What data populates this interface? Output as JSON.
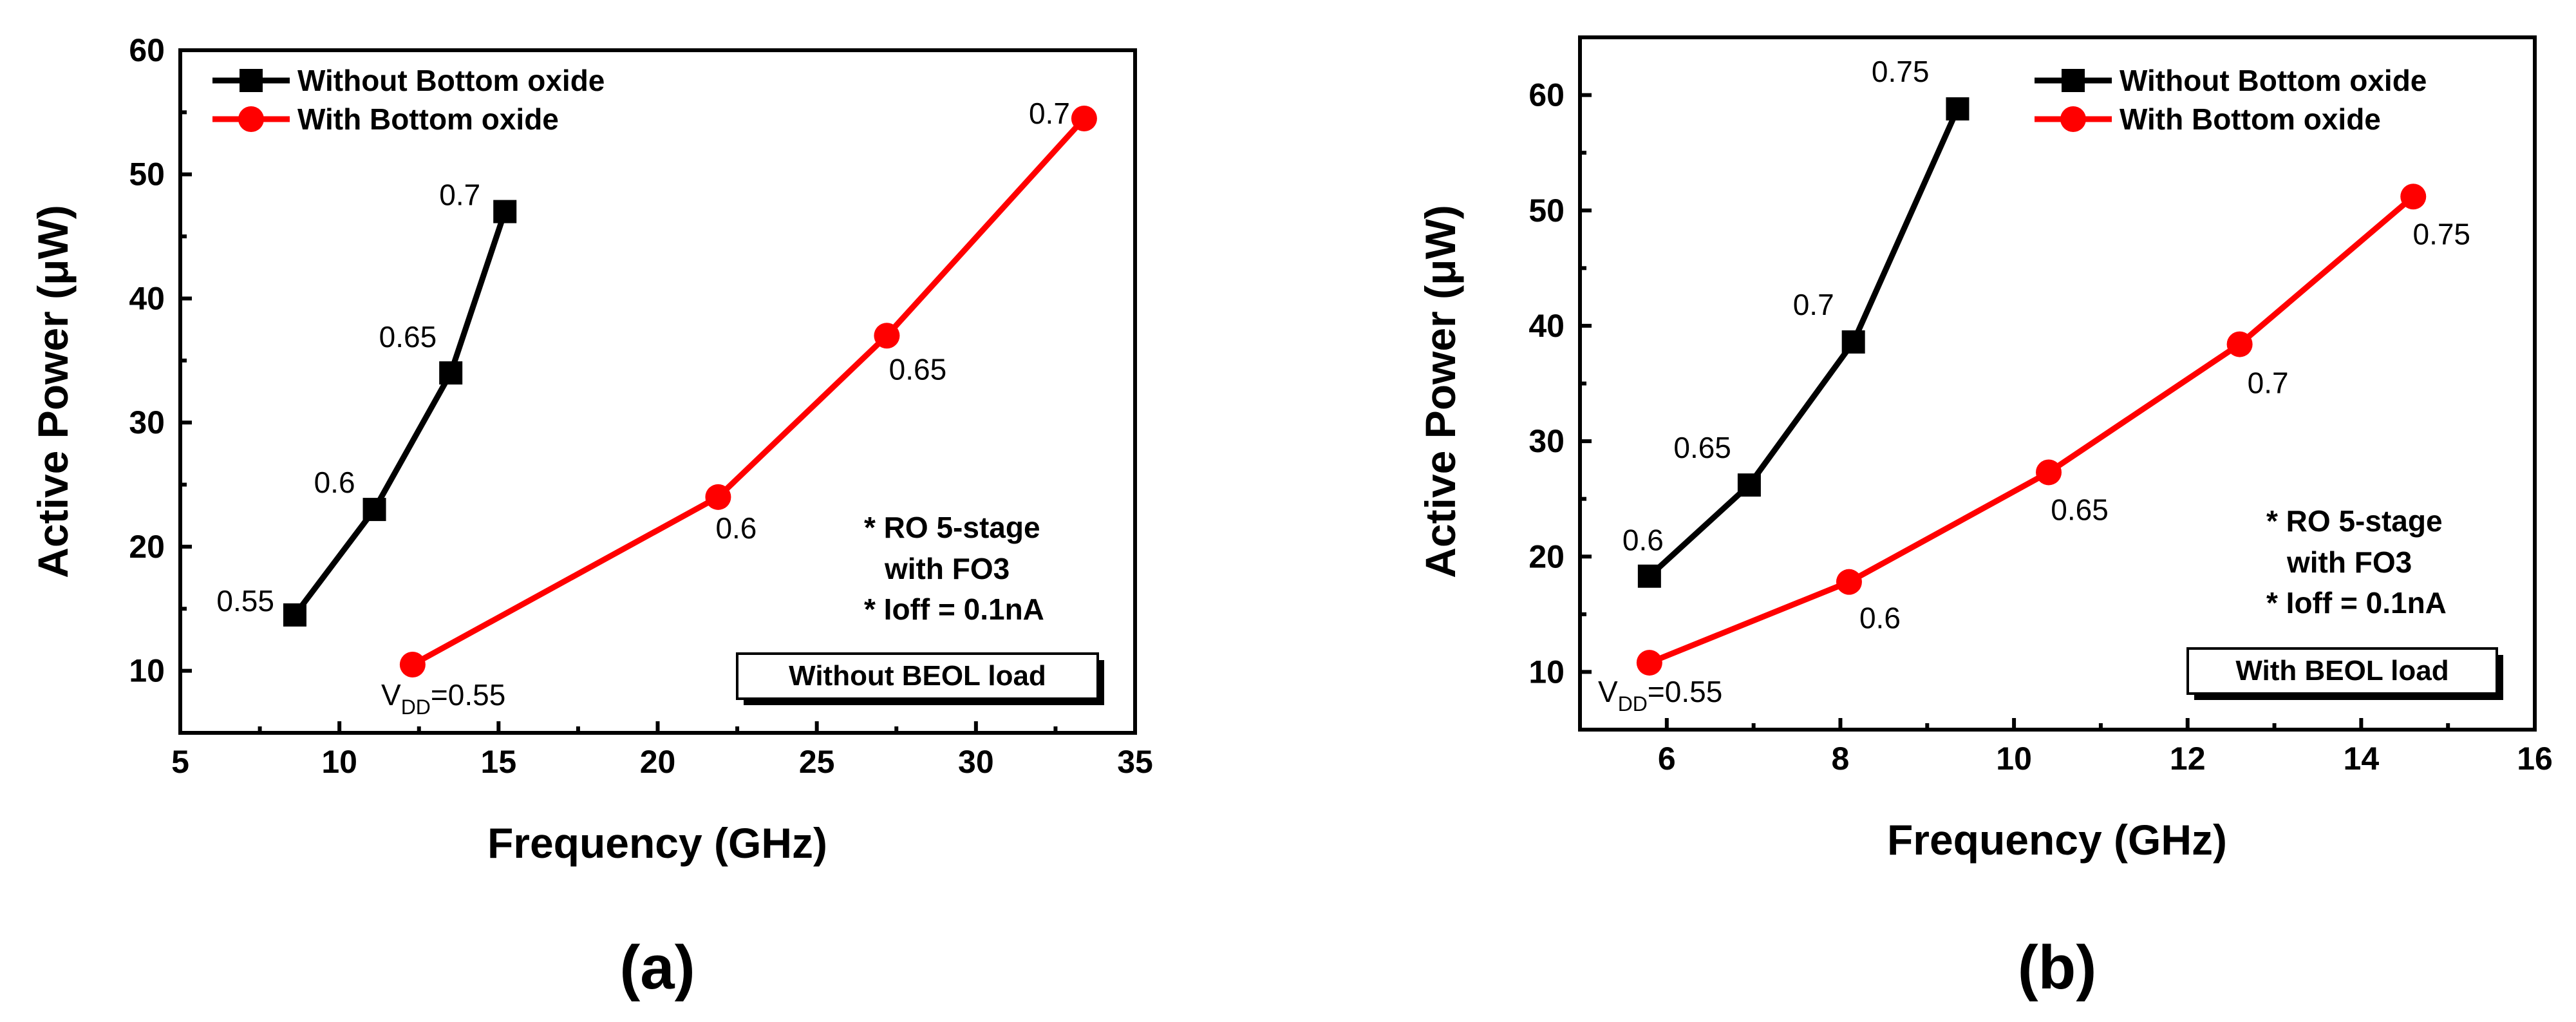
{
  "chart_data": [
    {
      "type": "line",
      "panel_label": "(a)",
      "xlabel": "Frequency (GHz)",
      "ylabel": "Active Power (μW)",
      "xlim": [
        5,
        35
      ],
      "ylim": [
        5,
        60
      ],
      "xticks": [
        5,
        10,
        15,
        20,
        25,
        30,
        35
      ],
      "yticks": [
        10,
        20,
        30,
        40,
        50,
        60
      ],
      "legend_position": "top-left",
      "series": [
        {
          "name": "Without Bottom oxide",
          "color": "#000000",
          "marker": "square",
          "x": [
            8.6,
            11.1,
            13.5,
            15.2
          ],
          "y": [
            14.5,
            23.0,
            34.0,
            47.0
          ],
          "point_labels": [
            "0.55",
            "0.6",
            "0.65",
            "0.7"
          ]
        },
        {
          "name": "With Bottom oxide",
          "color": "#ff0000",
          "marker": "circle",
          "x": [
            12.3,
            21.9,
            27.2,
            33.4
          ],
          "y": [
            10.5,
            24.0,
            37.0,
            54.5
          ],
          "point_labels": [
            "0.55",
            "0.6",
            "0.65",
            "0.7"
          ]
        }
      ],
      "vdd_prefix": "V",
      "vdd_subscript": "DD",
      "notes": [
        "* RO 5-stage",
        "with FO3",
        "* Ioff = 0.1nA"
      ],
      "box_label": "Without BEOL load"
    },
    {
      "type": "line",
      "panel_label": "(b)",
      "xlabel": "Frequency (GHz)",
      "ylabel": "Active Power (μW)",
      "xlim": [
        5,
        16
      ],
      "ylim": [
        5,
        65
      ],
      "xticks": [
        6,
        8,
        10,
        12,
        14,
        16
      ],
      "yticks": [
        10,
        20,
        30,
        40,
        50,
        60
      ],
      "legend_position": "top-right",
      "series": [
        {
          "name": "Without Bottom oxide",
          "color": "#000000",
          "marker": "square",
          "x": [
            5.8,
            6.95,
            8.15,
            9.35
          ],
          "y": [
            18.3,
            26.2,
            38.6,
            58.8
          ],
          "point_labels": [
            "0.6",
            "0.65",
            "0.7",
            "0.75"
          ]
        },
        {
          "name": "With Bottom oxide",
          "color": "#ff0000",
          "marker": "circle",
          "x": [
            5.8,
            8.1,
            10.4,
            12.6,
            14.6
          ],
          "y": [
            10.8,
            17.8,
            27.3,
            38.4,
            51.2
          ],
          "point_labels": [
            "0.55",
            "0.6",
            "0.65",
            "0.7",
            "0.75"
          ]
        }
      ],
      "vdd_prefix": "V",
      "vdd_subscript": "DD",
      "notes": [
        "* RO 5-stage",
        "with FO3",
        "* Ioff = 0.1nA"
      ],
      "box_label": "With BEOL load"
    }
  ]
}
